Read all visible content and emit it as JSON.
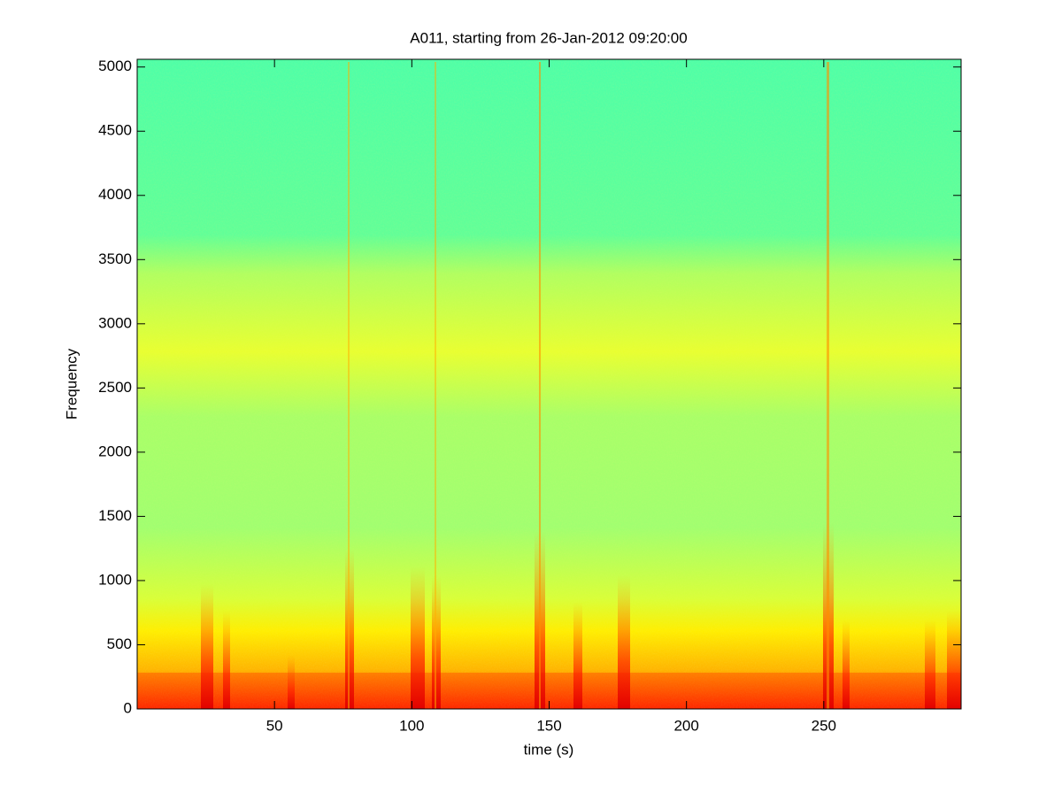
{
  "chart_data": {
    "type": "spectrogram",
    "title": "A011, starting from 26-Jan-2012 09:20:00",
    "x_label": "time (s)",
    "y_label": "Frequency",
    "xlim": [
      0,
      300
    ],
    "xticks": [
      50,
      100,
      150,
      200,
      250
    ],
    "ylim": [
      0,
      5060
    ],
    "yticks": [
      0,
      500,
      1000,
      1500,
      2000,
      2500,
      3000,
      3500,
      4000,
      4500,
      5000
    ]
  }
}
